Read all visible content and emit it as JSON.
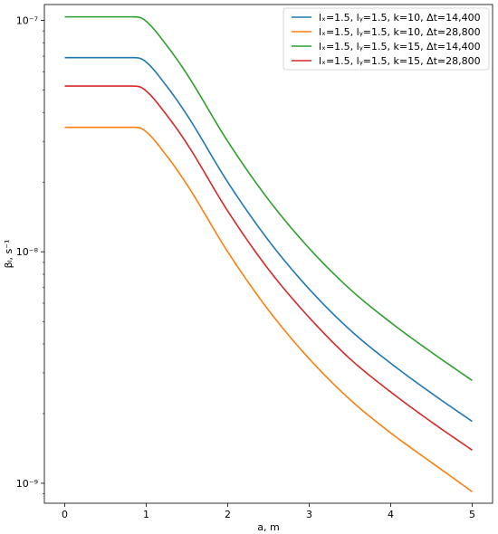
{
  "chart_data": {
    "type": "line",
    "xlabel": "a, m",
    "ylabel": "βₗ, s⁻¹",
    "xlim": [
      -0.25,
      5.25
    ],
    "ylim": [
      8.2e-10,
      1.17e-07
    ],
    "yscale": "log",
    "grid": false,
    "legend_position": "top-right",
    "x_ticks": [
      0,
      1,
      2,
      3,
      4,
      5
    ],
    "x_tick_labels": [
      "0",
      "1",
      "2",
      "3",
      "4",
      "5"
    ],
    "y_ticks": [
      1e-09,
      1e-08,
      1e-07
    ],
    "y_tick_labels": [
      "10⁻⁹",
      "10⁻⁸",
      "10⁻⁷"
    ],
    "x": [
      0,
      0.5,
      0.8,
      0.9,
      1.0,
      1.25,
      1.5,
      2.0,
      2.5,
      3.0,
      3.5,
      4.0,
      4.5,
      5.0
    ],
    "series": [
      {
        "name": "lₓ=1.5, lᵧ=1.5, k=10, Δt=14,400",
        "color": "#1f77b4",
        "values": [
          6.9e-08,
          6.9e-08,
          6.9e-08,
          6.88e-08,
          6.6e-08,
          5.2e-08,
          3.9e-08,
          2e-08,
          1.12e-08,
          6.9e-09,
          4.6e-09,
          3.3e-09,
          2.45e-09,
          1.85e-09
        ]
      },
      {
        "name": "lₓ=1.5, lᵧ=1.5, k=10, Δt=28,800",
        "color": "#ff7f0e",
        "values": [
          3.45e-08,
          3.45e-08,
          3.45e-08,
          3.44e-08,
          3.3e-08,
          2.6e-08,
          1.95e-08,
          1e-08,
          5.6e-09,
          3.45e-09,
          2.3e-09,
          1.65e-09,
          1.23e-09,
          9.2e-10
        ]
      },
      {
        "name": "lₓ=1.5, lᵧ=1.5, k=15, Δt=14,400",
        "color": "#2ca02c",
        "values": [
          1.035e-07,
          1.035e-07,
          1.035e-07,
          1.032e-07,
          9.9e-08,
          7.8e-08,
          5.85e-08,
          3e-08,
          1.68e-08,
          1.035e-08,
          6.9e-09,
          4.95e-09,
          3.68e-09,
          2.78e-09
        ]
      },
      {
        "name": "lₓ=1.5, lᵧ=1.5, k=15, Δt=28,800",
        "color": "#d62728",
        "values": [
          5.2e-08,
          5.2e-08,
          5.2e-08,
          5.18e-08,
          4.95e-08,
          3.9e-08,
          2.93e-08,
          1.5e-08,
          8.4e-09,
          5.2e-09,
          3.45e-09,
          2.48e-09,
          1.84e-09,
          1.39e-09
        ]
      }
    ]
  }
}
